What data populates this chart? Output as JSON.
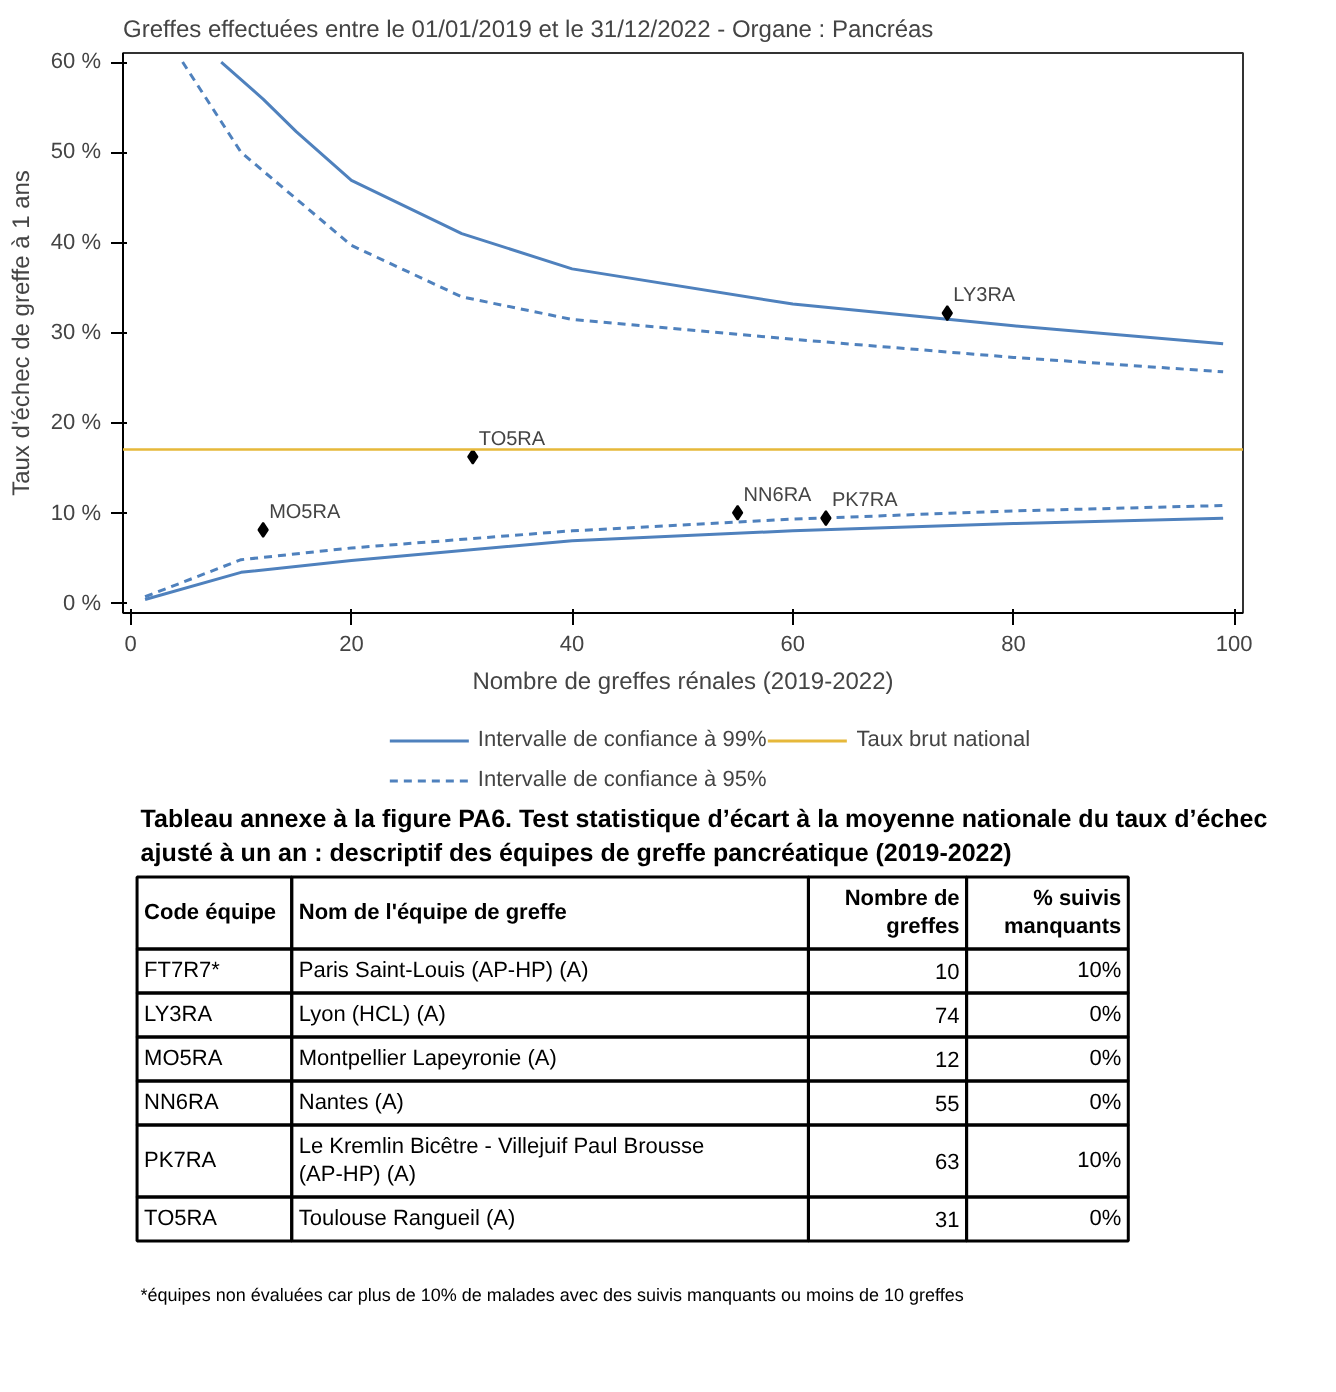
{
  "chart_data": {
    "type": "line",
    "title": "Greffes effectuées entre le 01/01/2019 et le 31/12/2022 - Organe : Pancréas",
    "xlabel": "Nombre de greffes rénales (2019-2022)",
    "ylabel": "Taux d'échec de greffe à 1 ans",
    "xlim": [
      -0.7,
      100.8
    ],
    "xticks": [
      0,
      20,
      40,
      60,
      80,
      100
    ],
    "ylim": [
      -1,
      61
    ],
    "yticks": [
      {
        "value": 0,
        "label": "0 %"
      },
      {
        "value": 10,
        "label": "10 %"
      },
      {
        "value": 20,
        "label": "20 %"
      },
      {
        "value": 30,
        "label": "30 %"
      },
      {
        "value": 40,
        "label": "40 %"
      },
      {
        "value": 50,
        "label": "50 %"
      },
      {
        "value": 60,
        "label": "60 %"
      }
    ],
    "grid": false,
    "legend": "bottom",
    "series": [
      {
        "name": "Intervalle de confiance à 99%",
        "color": "#4f81bd",
        "line_style": "solid",
        "x": [
          8.2,
          12,
          15,
          20,
          30,
          40,
          60,
          80,
          99
        ],
        "values": [
          60,
          55.9,
          52.3,
          46.9,
          41,
          37.1,
          33.2,
          30.8,
          28.8
        ]
      },
      {
        "name": "Intervalle de confiance à 95%",
        "color": "#4f81bd",
        "line_style": "dashed",
        "x": [
          4.7,
          10,
          20,
          30,
          40,
          60,
          80,
          99
        ],
        "values": [
          60,
          50,
          39.7,
          34,
          31.5,
          29.3,
          27.3,
          25.7
        ]
      },
      {
        "color": "#4f81bd",
        "line_style": "solid",
        "x": [
          1.3,
          10,
          20,
          40,
          60,
          80,
          99
        ],
        "values": [
          0.5,
          3.5,
          4.8,
          7.0,
          8.1,
          8.9,
          9.5
        ]
      },
      {
        "color": "#4f81bd",
        "line_style": "dashed",
        "x": [
          1.3,
          10,
          20,
          40,
          60,
          80,
          99
        ],
        "values": [
          0.8,
          4.9,
          6.2,
          8.1,
          9.4,
          10.3,
          10.9
        ]
      },
      {
        "type": "scatter",
        "color": "#000000",
        "marker": "diamond",
        "x": [
          74,
          31,
          12,
          55,
          63
        ],
        "values": [
          32.2,
          16.3,
          8.2,
          10.1,
          9.5
        ]
      }
    ],
    "ref_lines": [
      {
        "axis": "y",
        "value": 17.1,
        "label": "Taux brut national",
        "color": "#e6b83a"
      }
    ],
    "annotations": [
      {
        "text": "LY3RA",
        "x": 74,
        "y": 32.2
      },
      {
        "text": "TO5RA",
        "x": 31,
        "y": 16.3
      },
      {
        "text": "MO5RA",
        "x": 12,
        "y": 8.2
      },
      {
        "text": "NN6RA",
        "x": 55,
        "y": 10.1
      },
      {
        "text": "PK7RA",
        "x": 63,
        "y": 9.5
      },
      "Tableau annexe à la figure PA6. Test statistique d’écart à la moyenne nationale du taux d’échec ajusté à un an : descriptif des équipes de greffe pancréatique (2019-2022)",
      "Code équipe",
      "Nom de l'équipe de greffe",
      "Nombre de greffes",
      "% suivis manquants",
      "FT7R7*",
      "Paris Saint-Louis (AP-HP) (A)",
      "10",
      "10%",
      "LY3RA",
      "Lyon (HCL) (A)",
      "74",
      "0%",
      "MO5RA",
      "Montpellier Lapeyronie (A)",
      "12",
      "0%",
      "NN6RA",
      "Nantes (A)",
      "55",
      "0%",
      "PK7RA",
      "Le Kremlin Bicêtre - Villejuif Paul Brousse (AP-HP) (A)",
      "63",
      "10%",
      "TO5RA",
      "Toulouse Rangueil (A)",
      "31",
      "0%",
      "*équipes non évaluées car plus de 10% de malades avec des suivis manquants ou moins de 10 greffes"
    ]
  }
}
